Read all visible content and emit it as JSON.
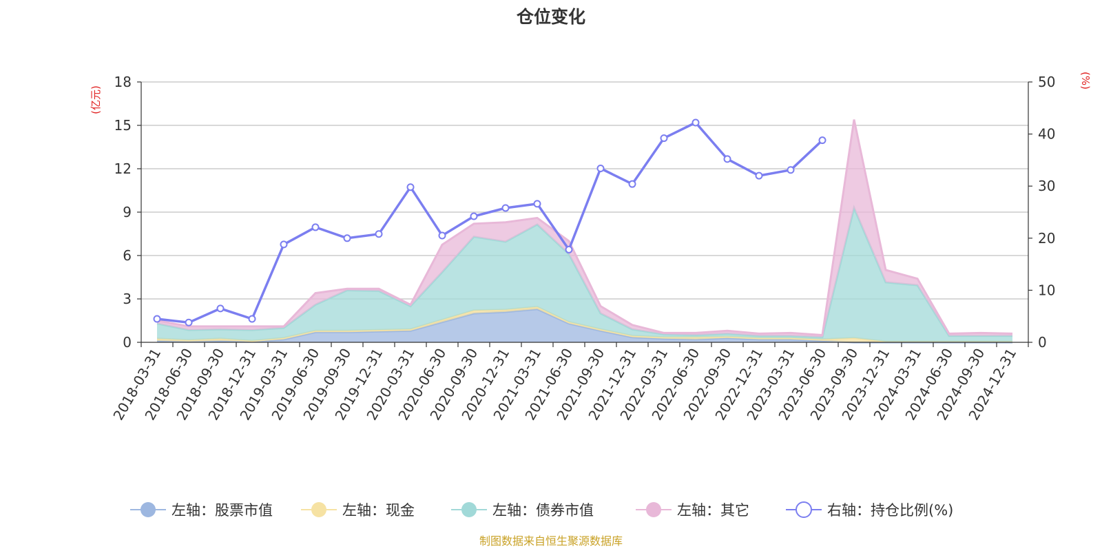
{
  "chart_data": {
    "type": "area",
    "title": "仓位变化",
    "source_note": "制图数据来自恒生聚源数据库",
    "left_axis": {
      "unit_label": "(亿元)",
      "range": [
        0,
        18
      ],
      "ticks": [
        "0",
        "3",
        "6",
        "9",
        "12",
        "15",
        "18"
      ]
    },
    "right_axis": {
      "unit_label": "(%)",
      "range": [
        0,
        50
      ],
      "ticks": [
        "0",
        "10",
        "20",
        "30",
        "40",
        "50"
      ]
    },
    "categories": [
      "2018-03-31",
      "2018-06-30",
      "2018-09-30",
      "2018-12-31",
      "2019-03-31",
      "2019-06-30",
      "2019-09-30",
      "2019-12-31",
      "2020-03-31",
      "2020-06-30",
      "2020-09-30",
      "2020-12-31",
      "2021-03-31",
      "2021-06-30",
      "2021-09-30",
      "2021-12-31",
      "2022-03-31",
      "2022-06-30",
      "2022-09-30",
      "2022-12-31",
      "2023-03-31",
      "2023-06-30",
      "2023-09-30",
      "2023-12-31",
      "2024-03-31",
      "2024-06-30",
      "2024-09-30",
      "2024-12-31"
    ],
    "series": [
      {
        "name": "左轴：股票市值",
        "axis": "left",
        "stack": true,
        "color": "#9db7e0",
        "values": [
          0.1,
          0.05,
          0.1,
          0.05,
          0.2,
          0.7,
          0.7,
          0.75,
          0.8,
          1.4,
          2.0,
          2.1,
          2.3,
          1.3,
          0.8,
          0.35,
          0.25,
          0.2,
          0.3,
          0.2,
          0.2,
          0.1,
          0,
          0,
          0,
          0,
          0,
          0
        ]
      },
      {
        "name": "左轴：现金",
        "axis": "left",
        "stack": true,
        "color": "#f6e2a3",
        "values": [
          0.15,
          0.1,
          0.15,
          0.05,
          0.1,
          0.1,
          0.1,
          0.1,
          0.1,
          0.15,
          0.2,
          0.15,
          0.15,
          0.1,
          0.1,
          0.1,
          0.1,
          0.15,
          0.1,
          0.1,
          0.1,
          0.1,
          0.3,
          0.05,
          0.05,
          0.05,
          0.05,
          0.05
        ]
      },
      {
        "name": "左轴：债券市值",
        "axis": "left",
        "stack": true,
        "color": "#a1d9d8",
        "values": [
          1.05,
          0.7,
          0.65,
          0.75,
          0.7,
          1.8,
          2.8,
          2.7,
          1.6,
          3.3,
          5.1,
          4.7,
          5.7,
          4.7,
          1.1,
          0.45,
          0.2,
          0.15,
          0.2,
          0.15,
          0.15,
          0.15,
          9.0,
          4.1,
          3.9,
          0.4,
          0.4,
          0.4
        ]
      },
      {
        "name": "左轴：其它",
        "axis": "left",
        "stack": true,
        "color": "#e8b8d8",
        "values": [
          0.2,
          0.25,
          0.2,
          0.25,
          0.1,
          0.8,
          0.1,
          0.15,
          0.1,
          1.9,
          0.9,
          1.35,
          0.45,
          0.9,
          0.5,
          0.3,
          0.1,
          0.15,
          0.2,
          0.15,
          0.2,
          0.15,
          6.1,
          0.85,
          0.45,
          0.15,
          0.2,
          0.15
        ]
      },
      {
        "name": "右轴：持仓比例(%)",
        "axis": "right",
        "stack": false,
        "color": "#7b7ef0",
        "values": [
          4.5,
          3.8,
          6.5,
          4.5,
          18.8,
          22.1,
          20.0,
          20.8,
          29.8,
          20.5,
          24.2,
          25.8,
          26.6,
          17.8,
          33.4,
          30.4,
          39.2,
          42.2,
          35.2,
          32.0,
          33.1,
          38.8,
          null,
          null,
          null,
          null,
          null,
          null
        ]
      }
    ]
  }
}
